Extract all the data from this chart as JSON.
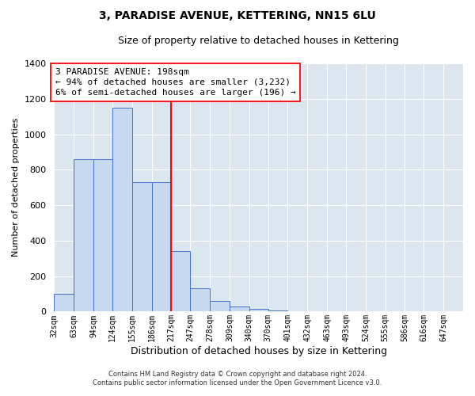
{
  "title": "3, PARADISE AVENUE, KETTERING, NN15 6LU",
  "subtitle": "Size of property relative to detached houses in Kettering",
  "xlabel": "Distribution of detached houses by size in Kettering",
  "ylabel": "Number of detached properties",
  "footnote1": "Contains HM Land Registry data © Crown copyright and database right 2024.",
  "footnote2": "Contains public sector information licensed under the Open Government Licence v3.0.",
  "annotation_line1": "3 PARADISE AVENUE: 198sqm",
  "annotation_line2": "← 94% of detached houses are smaller (3,232)",
  "annotation_line3": "6% of semi-detached houses are larger (196) →",
  "bar_edges": [
    32,
    63,
    94,
    124,
    155,
    186,
    217,
    247,
    278,
    309,
    340,
    370,
    401,
    432,
    463,
    493,
    524,
    555,
    586,
    616,
    647
  ],
  "bar_widths": [
    31,
    31,
    30,
    31,
    31,
    31,
    30,
    31,
    31,
    31,
    30,
    31,
    31,
    31,
    30,
    31,
    31,
    31,
    30,
    31,
    31
  ],
  "bar_heights": [
    100,
    860,
    860,
    1150,
    730,
    730,
    340,
    130,
    60,
    30,
    15,
    5,
    2,
    1,
    0,
    0,
    0,
    0,
    0,
    0,
    0
  ],
  "bar_color": "#c6d9f0",
  "bar_edge_color": "#4472c4",
  "red_line_x": 217,
  "ylim": [
    0,
    1400
  ],
  "yticks": [
    0,
    200,
    400,
    600,
    800,
    1000,
    1200,
    1400
  ],
  "xlim_left": 32,
  "xlim_right": 678,
  "bg_color": "#dce6f1",
  "grid_color": "#ffffff",
  "title_fontsize": 10,
  "subtitle_fontsize": 9,
  "tick_fontsize": 7,
  "ylabel_fontsize": 8,
  "xlabel_fontsize": 9,
  "annotation_fontsize": 8
}
